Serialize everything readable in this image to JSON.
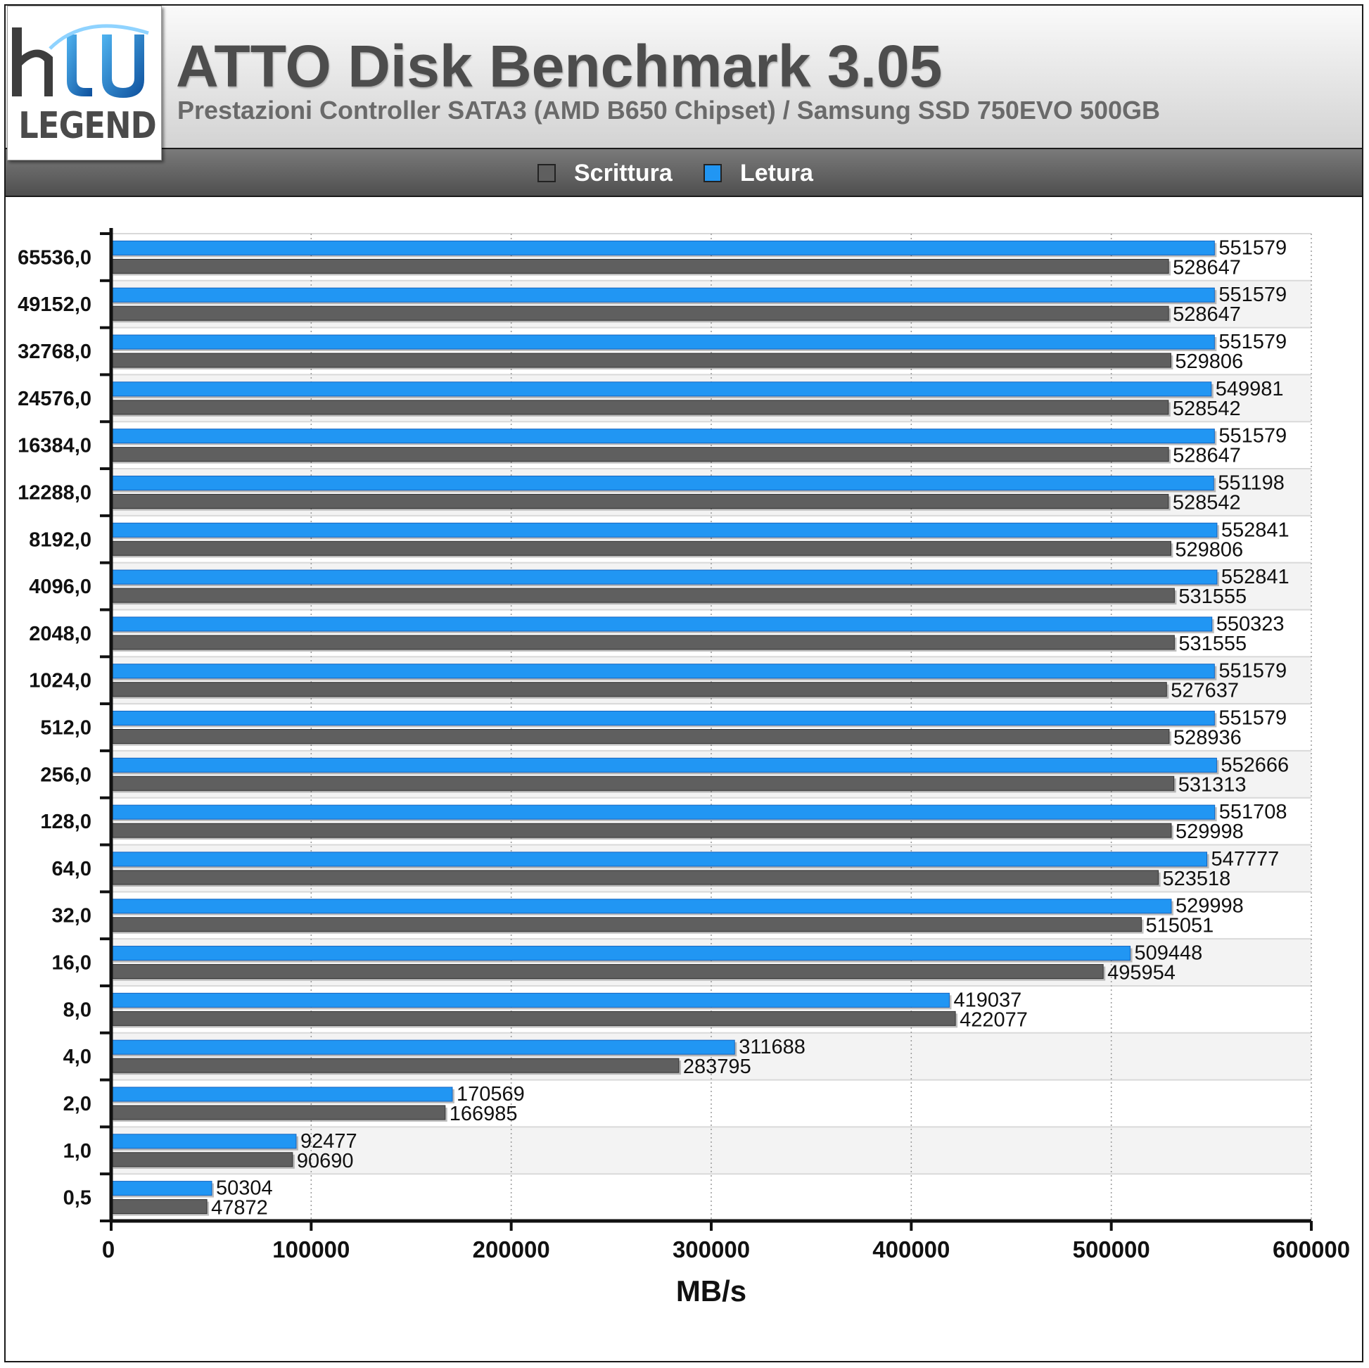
{
  "header": {
    "logo_text": "LEGEND",
    "title": "ATTO Disk Benchmark 3.05",
    "subtitle": "Prestazioni Controller SATA3 (AMD B650 Chipset) / Samsung SSD 750EVO 500GB"
  },
  "legend": {
    "items": [
      {
        "label": "Scrittura",
        "color": "#5f5f5f"
      },
      {
        "label": "Letura",
        "color": "#2196f3"
      }
    ]
  },
  "colors": {
    "write": "#5f5f5f",
    "read": "#2196f3",
    "logo_blue": "#1e88d8",
    "logo_dark_blue": "#0d4f9c"
  },
  "chart_data": {
    "type": "bar",
    "orientation": "horizontal",
    "categories": [
      "65536,0",
      "49152,0",
      "32768,0",
      "24576,0",
      "16384,0",
      "12288,0",
      "8192,0",
      "4096,0",
      "2048,0",
      "1024,0",
      "512,0",
      "256,0",
      "128,0",
      "64,0",
      "32,0",
      "16,0",
      "8,0",
      "4,0",
      "2,0",
      "1,0",
      "0,5"
    ],
    "series": [
      {
        "name": "Letura",
        "values": [
          551579,
          551579,
          551579,
          549981,
          551579,
          551198,
          552841,
          552841,
          550323,
          551579,
          551579,
          552666,
          551708,
          547777,
          529998,
          509448,
          419037,
          311688,
          170569,
          92477,
          50304
        ]
      },
      {
        "name": "Scrittura",
        "values": [
          528647,
          528647,
          529806,
          528542,
          528647,
          528542,
          529806,
          531555,
          531555,
          527637,
          528936,
          531313,
          529998,
          523518,
          515051,
          495954,
          422077,
          283795,
          166985,
          90690,
          47872
        ]
      }
    ],
    "xlim": [
      0,
      600000
    ],
    "xticks": [
      "0",
      "100000",
      "200000",
      "300000",
      "400000",
      "500000",
      "600000"
    ],
    "xlabel": "MB/s",
    "ylabel": "",
    "grid": "vertical dotted",
    "legend_position": "top-center"
  }
}
